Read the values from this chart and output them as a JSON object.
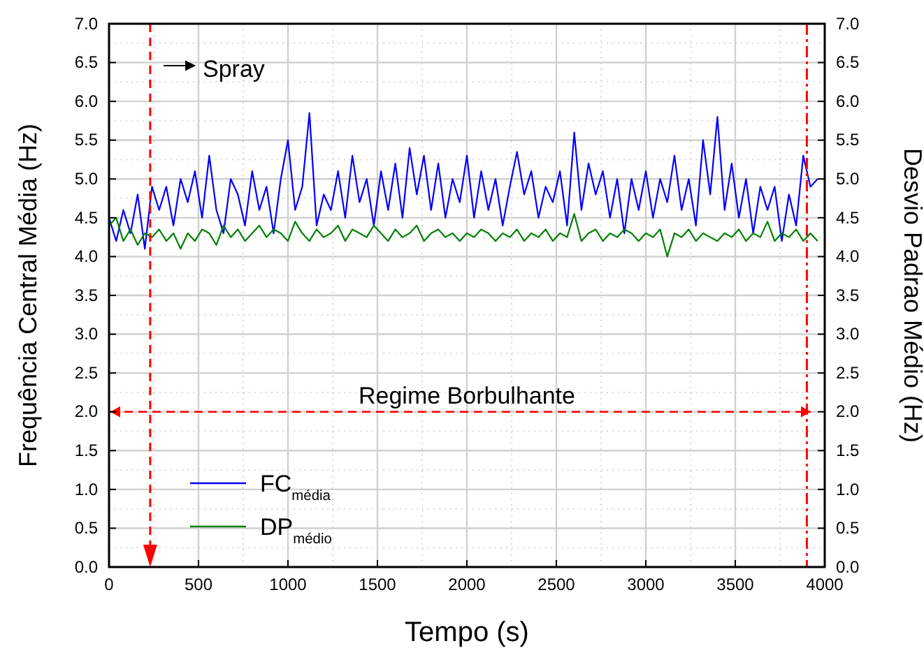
{
  "chart_data": {
    "type": "line",
    "xlabel": "Tempo (s)",
    "ylabel": "Frequência Central Média (Hz)",
    "y2label": "Desvio Padrao Médio (Hz)",
    "x": [
      0,
      40,
      80,
      120,
      160,
      200,
      240,
      280,
      320,
      360,
      400,
      440,
      480,
      520,
      560,
      600,
      640,
      680,
      720,
      760,
      800,
      840,
      880,
      920,
      960,
      1000,
      1040,
      1080,
      1120,
      1160,
      1200,
      1240,
      1280,
      1320,
      1360,
      1400,
      1440,
      1480,
      1520,
      1560,
      1600,
      1640,
      1680,
      1720,
      1760,
      1800,
      1840,
      1880,
      1920,
      1960,
      2000,
      2040,
      2080,
      2120,
      2160,
      2200,
      2240,
      2280,
      2320,
      2360,
      2400,
      2440,
      2480,
      2520,
      2560,
      2600,
      2640,
      2680,
      2720,
      2760,
      2800,
      2840,
      2880,
      2920,
      2960,
      3000,
      3040,
      3080,
      3120,
      3160,
      3200,
      3240,
      3280,
      3320,
      3360,
      3400,
      3440,
      3480,
      3520,
      3560,
      3600,
      3640,
      3680,
      3720,
      3760,
      3800,
      3840,
      3880,
      3920,
      3960
    ],
    "series": [
      {
        "name": "FC$_{média}$",
        "color": "#0000ff",
        "values": [
          4.5,
          4.2,
          4.6,
          4.3,
          4.8,
          4.1,
          4.9,
          4.6,
          4.9,
          4.4,
          5.0,
          4.7,
          5.1,
          4.5,
          5.3,
          4.6,
          4.3,
          5.0,
          4.8,
          4.4,
          5.1,
          4.6,
          4.9,
          4.3,
          5.0,
          5.5,
          4.6,
          4.9,
          5.85,
          4.4,
          4.8,
          4.6,
          5.1,
          4.5,
          5.3,
          4.7,
          5.0,
          4.4,
          5.1,
          4.6,
          5.2,
          4.5,
          5.4,
          4.8,
          5.3,
          4.6,
          5.2,
          4.5,
          5.0,
          4.7,
          5.3,
          4.5,
          5.1,
          4.6,
          5.0,
          4.4,
          4.9,
          5.35,
          4.8,
          5.1,
          4.5,
          4.9,
          4.7,
          5.1,
          4.4,
          5.6,
          4.6,
          5.2,
          4.8,
          5.1,
          4.5,
          5.0,
          4.3,
          5.0,
          4.6,
          5.1,
          4.5,
          5.0,
          4.7,
          5.3,
          4.6,
          5.0,
          4.4,
          5.5,
          4.8,
          5.8,
          4.6,
          5.2,
          4.5,
          5.0,
          4.3,
          4.9,
          4.6,
          4.9,
          4.2,
          4.8,
          4.4,
          5.3,
          4.9,
          5.0
        ]
      },
      {
        "name": "DP$_{médio}$",
        "color": "#008000",
        "values": [
          4.4,
          4.5,
          4.2,
          4.35,
          4.15,
          4.3,
          4.25,
          4.35,
          4.2,
          4.3,
          4.1,
          4.3,
          4.2,
          4.35,
          4.3,
          4.15,
          4.4,
          4.25,
          4.35,
          4.2,
          4.3,
          4.4,
          4.25,
          4.35,
          4.3,
          4.2,
          4.45,
          4.3,
          4.2,
          4.35,
          4.25,
          4.3,
          4.4,
          4.2,
          4.35,
          4.3,
          4.25,
          4.4,
          4.3,
          4.2,
          4.35,
          4.25,
          4.3,
          4.4,
          4.2,
          4.3,
          4.35,
          4.25,
          4.3,
          4.2,
          4.3,
          4.25,
          4.35,
          4.3,
          4.2,
          4.3,
          4.25,
          4.35,
          4.2,
          4.3,
          4.25,
          4.35,
          4.2,
          4.3,
          4.25,
          4.55,
          4.2,
          4.3,
          4.35,
          4.2,
          4.3,
          4.25,
          4.35,
          4.3,
          4.2,
          4.3,
          4.25,
          4.35,
          4.0,
          4.3,
          4.25,
          4.35,
          4.2,
          4.3,
          4.25,
          4.2,
          4.3,
          4.25,
          4.35,
          4.2,
          4.3,
          4.25,
          4.45,
          4.2,
          4.3,
          4.25,
          4.35,
          4.2,
          4.3,
          4.2
        ]
      }
    ],
    "xlim": [
      0,
      4000
    ],
    "xticks": [
      0,
      500,
      1000,
      1500,
      2000,
      2500,
      3000,
      3500,
      4000
    ],
    "ylim": [
      0,
      7
    ],
    "yticks": [
      {
        "value": 0,
        "label": "0.0"
      },
      {
        "value": 0.5,
        "label": "0.5"
      },
      {
        "value": 1,
        "label": "1.0"
      },
      {
        "value": 1.5,
        "label": "1.5"
      },
      {
        "value": 2,
        "label": "2.0"
      },
      {
        "value": 2.5,
        "label": "2.5"
      },
      {
        "value": 3,
        "label": "3.0"
      },
      {
        "value": 3.5,
        "label": "3.5"
      },
      {
        "value": 4,
        "label": "4.0"
      },
      {
        "value": 4.5,
        "label": "4.5"
      },
      {
        "value": 5,
        "label": "5.0"
      },
      {
        "value": 5.5,
        "label": "5.5"
      },
      {
        "value": 6,
        "label": "6.0"
      },
      {
        "value": 6.5,
        "label": "6.5"
      },
      {
        "value": 7,
        "label": "7.0"
      }
    ],
    "y2lim": [
      0,
      7
    ],
    "y2ticks": [
      {
        "value": 0,
        "label": "0.0"
      },
      {
        "value": 0.5,
        "label": "0.5"
      },
      {
        "value": 1,
        "label": "1.0"
      },
      {
        "value": 1.5,
        "label": "1.5"
      },
      {
        "value": 2,
        "label": "2.0"
      },
      {
        "value": 2.5,
        "label": "2.5"
      },
      {
        "value": 3,
        "label": "3.0"
      },
      {
        "value": 3.5,
        "label": "3.5"
      },
      {
        "value": 4,
        "label": "4.0"
      },
      {
        "value": 4.5,
        "label": "4.5"
      },
      {
        "value": 5,
        "label": "5.0"
      },
      {
        "value": 5.5,
        "label": "5.5"
      },
      {
        "value": 6,
        "label": "6.0"
      },
      {
        "value": 6.5,
        "label": "6.5"
      },
      {
        "value": 7,
        "label": "7.0"
      }
    ],
    "ref_lines": [
      {
        "axis": "x",
        "value": 230,
        "color": "#ff0000",
        "line_style": "dashed"
      },
      {
        "axis": "x",
        "value": 3900,
        "color": "#ff0000",
        "line_style": "dotted"
      },
      {
        "axis": "y",
        "value": 2,
        "label": "Regime Borbulhante",
        "color": "#ff0000",
        "line_style": "dashed"
      }
    ],
    "annotations": [
      "Spray"
    ],
    "grid": true,
    "legend": "bottom left",
    "line_style": "solid",
    "marker": "none"
  }
}
